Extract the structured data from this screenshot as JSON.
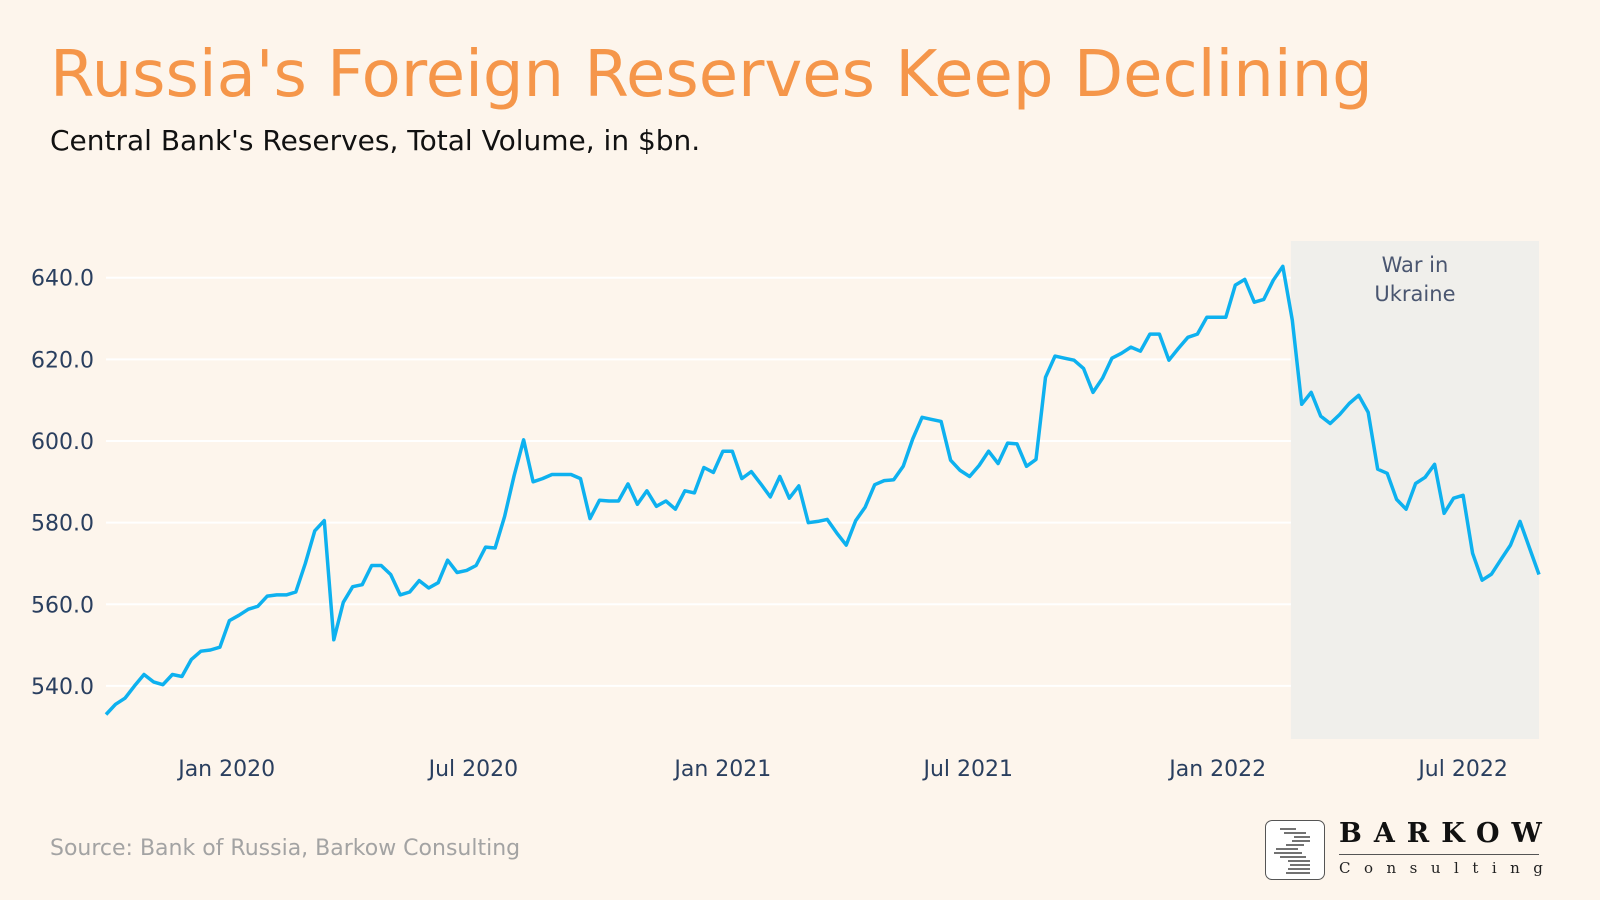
{
  "title": "Russia's Foreign Reserves Keep Declining",
  "subtitle": "Central Bank's Reserves, Total Volume, in $bn.",
  "source": "Source: Bank of Russia, Barkow Consulting",
  "logo": {
    "name": "BARKOW",
    "sub": "Consulting"
  },
  "colors": {
    "title": "#f5964a",
    "line": "#0eb1ef",
    "background": "#fdf5ec",
    "shade": "#f0efeb",
    "annotation": "#4a5670",
    "axis_text": "#2a3f5f"
  },
  "chart_data": {
    "type": "line",
    "title": "Russia's Foreign Reserves Keep Declining",
    "subtitle": "Central Bank's Reserves, Total Volume, in $bn.",
    "xlabel": "",
    "ylabel": "",
    "ylim": [
      527,
      649
    ],
    "grid": true,
    "legend": "none",
    "y_ticks": [
      540,
      560,
      580,
      600,
      620,
      640
    ],
    "y_tick_labels": [
      "540.0",
      "560.0",
      "580.0",
      "600.0",
      "620.0",
      "640.0"
    ],
    "x_ticks": [
      "2020-01-01",
      "2020-07-01",
      "2021-01-01",
      "2021-07-01",
      "2022-01-01",
      "2022-07-01"
    ],
    "x_tick_labels": [
      "Jan 2020",
      "Jul 2020",
      "Jan 2021",
      "Jul 2021",
      "Jan 2022",
      "Jul 2022"
    ],
    "shaded_region": {
      "start": "2022-02-24",
      "end": "2022-08-26",
      "label_line1": "War in",
      "label_line2": "Ukraine"
    },
    "x": [
      "2019-10-04",
      "2019-10-11",
      "2019-10-18",
      "2019-10-25",
      "2019-11-01",
      "2019-11-08",
      "2019-11-15",
      "2019-11-22",
      "2019-11-29",
      "2019-12-06",
      "2019-12-13",
      "2019-12-20",
      "2019-12-27",
      "2020-01-03",
      "2020-01-10",
      "2020-01-17",
      "2020-01-24",
      "2020-01-31",
      "2020-02-07",
      "2020-02-14",
      "2020-02-21",
      "2020-02-28",
      "2020-03-06",
      "2020-03-13",
      "2020-03-20",
      "2020-03-27",
      "2020-04-03",
      "2020-04-10",
      "2020-04-17",
      "2020-04-24",
      "2020-05-01",
      "2020-05-08",
      "2020-05-15",
      "2020-05-22",
      "2020-05-29",
      "2020-06-05",
      "2020-06-12",
      "2020-06-19",
      "2020-06-26",
      "2020-07-03",
      "2020-07-10",
      "2020-07-17",
      "2020-07-24",
      "2020-07-31",
      "2020-08-07",
      "2020-08-14",
      "2020-08-21",
      "2020-08-28",
      "2020-09-04",
      "2020-09-11",
      "2020-09-18",
      "2020-09-25",
      "2020-10-02",
      "2020-10-09",
      "2020-10-16",
      "2020-10-23",
      "2020-10-30",
      "2020-11-06",
      "2020-11-13",
      "2020-11-20",
      "2020-11-27",
      "2020-12-04",
      "2020-12-11",
      "2020-12-18",
      "2020-12-25",
      "2021-01-01",
      "2021-01-08",
      "2021-01-15",
      "2021-01-22",
      "2021-01-29",
      "2021-02-05",
      "2021-02-12",
      "2021-02-19",
      "2021-02-26",
      "2021-03-05",
      "2021-03-12",
      "2021-03-19",
      "2021-03-26",
      "2021-04-02",
      "2021-04-09",
      "2021-04-16",
      "2021-04-23",
      "2021-04-30",
      "2021-05-07",
      "2021-05-14",
      "2021-05-21",
      "2021-05-28",
      "2021-06-04",
      "2021-06-11",
      "2021-06-18",
      "2021-06-25",
      "2021-07-02",
      "2021-07-09",
      "2021-07-16",
      "2021-07-23",
      "2021-07-30",
      "2021-08-06",
      "2021-08-13",
      "2021-08-20",
      "2021-08-27",
      "2021-09-03",
      "2021-09-10",
      "2021-09-17",
      "2021-09-24",
      "2021-10-01",
      "2021-10-08",
      "2021-10-15",
      "2021-10-22",
      "2021-10-29",
      "2021-11-05",
      "2021-11-12",
      "2021-11-19",
      "2021-11-26",
      "2021-12-03",
      "2021-12-10",
      "2021-12-17",
      "2021-12-24",
      "2021-12-31",
      "2022-01-07",
      "2022-01-14",
      "2022-01-21",
      "2022-01-28",
      "2022-02-04",
      "2022-02-11",
      "2022-02-18",
      "2022-02-25",
      "2022-03-04",
      "2022-03-11",
      "2022-03-18",
      "2022-03-25",
      "2022-04-01",
      "2022-04-08",
      "2022-04-15",
      "2022-04-22",
      "2022-04-29",
      "2022-05-06",
      "2022-05-13",
      "2022-05-20",
      "2022-05-27",
      "2022-06-03",
      "2022-06-10",
      "2022-06-17",
      "2022-06-24",
      "2022-07-01",
      "2022-07-08",
      "2022-07-15",
      "2022-07-22",
      "2022-07-29",
      "2022-08-05",
      "2022-08-12",
      "2022-08-19",
      "2022-08-26"
    ],
    "values": [
      533,
      535.5,
      537,
      540,
      542.8,
      541,
      540.3,
      542.8,
      542.3,
      546.5,
      548.5,
      548.8,
      549.5,
      556,
      557.3,
      558.8,
      559.5,
      562,
      562.3,
      562.3,
      563,
      570,
      578,
      580.5,
      551.3,
      560.5,
      564.3,
      564.8,
      569.5,
      569.5,
      567.3,
      562.3,
      563,
      565.8,
      564,
      565.3,
      570.8,
      567.8,
      568.3,
      569.5,
      574,
      573.8,
      581.5,
      591.5,
      600.3,
      590,
      590.8,
      591.8,
      591.8,
      591.8,
      590.8,
      581,
      585.5,
      585.3,
      585.3,
      589.5,
      584.5,
      587.8,
      584,
      585.3,
      583.3,
      587.8,
      587.3,
      593.5,
      592.3,
      597.5,
      597.5,
      590.8,
      592.5,
      589.5,
      586.3,
      591.3,
      586,
      589,
      580,
      580.3,
      580.8,
      577.5,
      574.5,
      580.5,
      583.8,
      589.3,
      590.3,
      590.5,
      593.8,
      600.5,
      605.8,
      605.3,
      604.8,
      595.3,
      592.8,
      591.3,
      594,
      597.5,
      594.5,
      599.5,
      599.3,
      593.8,
      595.5,
      615.6,
      620.8,
      620.3,
      619.8,
      617.8,
      611.9,
      615.4,
      620.3,
      621.5,
      623,
      622,
      626.2,
      626.2,
      619.8,
      622.7,
      625.4,
      626.2,
      630.3,
      630.3,
      630.3,
      638.2,
      639.6,
      634,
      634.7,
      639.4,
      642.8,
      629.6,
      609,
      611.9,
      606.1,
      604.3,
      606.5,
      609.2,
      611.2,
      607,
      593.1,
      592.1,
      585.7,
      583.3,
      589.6,
      591.1,
      594.3,
      582.3,
      586,
      586.7,
      572.5,
      565.9,
      567.4,
      571,
      574.5,
      580.3,
      573.8,
      567.3
    ]
  }
}
